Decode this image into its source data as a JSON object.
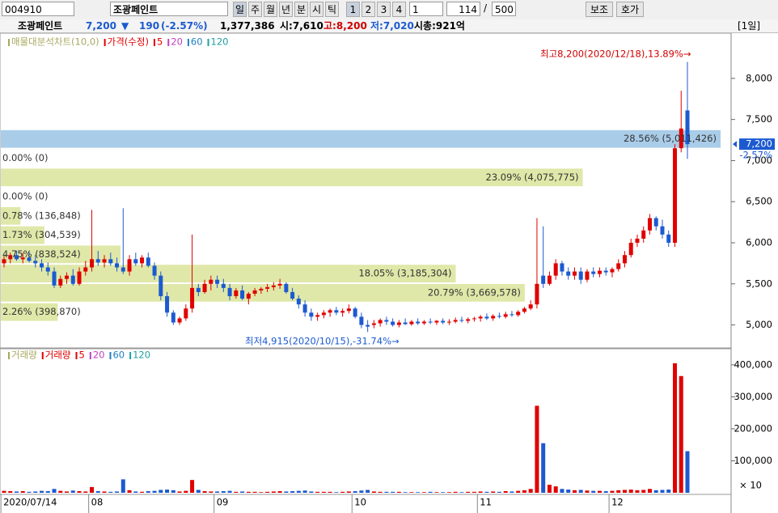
{
  "toolbar": {
    "code": "004910",
    "name": "조광페인트",
    "periods": [
      "일",
      "주",
      "월",
      "년",
      "분",
      "시",
      "틱"
    ],
    "numbers": [
      "1",
      "2",
      "3",
      "4"
    ],
    "interval": "1",
    "count": "114",
    "separator": "/",
    "total": "500",
    "buttons": [
      "보조",
      "호가"
    ]
  },
  "info": {
    "name": "조광페인트",
    "price": "7,200",
    "arrow": "▼",
    "change": "190",
    "change_pct": "(-2.57%)",
    "volume": "1,377,386",
    "open": "시:7,610",
    "high": "고:8,200",
    "low": "저:7,020",
    "cap": "시총:921억",
    "period": "[1일]"
  },
  "chart_data": {
    "type": "candlestick",
    "price_legend": [
      {
        "name": "매물대분석차트(10,0)",
        "color": "#a8a860"
      },
      {
        "name": "가격(수정)",
        "color": "#e00000"
      },
      {
        "name": "5",
        "color": "#e00000"
      },
      {
        "name": "20",
        "color": "#c040c0"
      },
      {
        "name": "60",
        "color": "#2080c0"
      },
      {
        "name": "120",
        "color": "#20a0a0"
      }
    ],
    "volume_legend": [
      {
        "name": "거래량",
        "color": "#a8a860"
      },
      {
        "name": "거래량",
        "color": "#e00000"
      },
      {
        "name": "5",
        "color": "#e00000"
      },
      {
        "name": "20",
        "color": "#c040c0"
      },
      {
        "name": "60",
        "color": "#2080c0"
      },
      {
        "name": "120",
        "color": "#20a0a0"
      }
    ],
    "categories": [
      "2020/07/14",
      null,
      null,
      null,
      null,
      null,
      null,
      null,
      null,
      null,
      null,
      null,
      null,
      null,
      "08",
      null,
      null,
      null,
      null,
      null,
      null,
      null,
      null,
      null,
      null,
      null,
      null,
      null,
      null,
      null,
      null,
      null,
      null,
      null,
      "09",
      null,
      null,
      null,
      null,
      null,
      null,
      null,
      null,
      null,
      null,
      null,
      null,
      null,
      null,
      null,
      null,
      null,
      null,
      null,
      null,
      null,
      "10",
      null,
      null,
      null,
      null,
      null,
      null,
      null,
      null,
      null,
      null,
      null,
      null,
      null,
      null,
      null,
      null,
      null,
      null,
      null,
      "11",
      null,
      null,
      null,
      null,
      null,
      null,
      null,
      null,
      null,
      null,
      null,
      null,
      null,
      null,
      null,
      null,
      null,
      null,
      null,
      null,
      "12",
      null,
      null,
      null,
      null,
      null,
      null,
      null,
      null,
      null,
      null,
      null,
      null
    ],
    "candles": [
      [
        5750,
        5850,
        5700,
        5800
      ],
      [
        5800,
        5880,
        5750,
        5850
      ],
      [
        5850,
        5900,
        5780,
        5800
      ],
      [
        5800,
        5880,
        5750,
        5820
      ],
      [
        5820,
        5900,
        5760,
        5780
      ],
      [
        5780,
        5850,
        5700,
        5750
      ],
      [
        5750,
        5800,
        5650,
        5700
      ],
      [
        5700,
        5760,
        5600,
        5650
      ],
      [
        5650,
        5700,
        5450,
        5480
      ],
      [
        5480,
        5600,
        5450,
        5560
      ],
      [
        5560,
        5640,
        5500,
        5600
      ],
      [
        5600,
        5680,
        5480,
        5500
      ],
      [
        5500,
        5700,
        5480,
        5650
      ],
      [
        5650,
        5780,
        5600,
        5700
      ],
      [
        5700,
        6400,
        5650,
        5800
      ],
      [
        5800,
        5900,
        5720,
        5760
      ],
      [
        5760,
        5850,
        5700,
        5800
      ],
      [
        5800,
        5880,
        5720,
        5750
      ],
      [
        5750,
        5820,
        5650,
        5700
      ],
      [
        5700,
        6420,
        5620,
        5650
      ],
      [
        5650,
        5850,
        5600,
        5800
      ],
      [
        5800,
        5880,
        5720,
        5750
      ],
      [
        5750,
        5850,
        5700,
        5820
      ],
      [
        5820,
        5880,
        5700,
        5720
      ],
      [
        5720,
        5760,
        5550,
        5600
      ],
      [
        5600,
        5650,
        5300,
        5350
      ],
      [
        5350,
        5400,
        5100,
        5150
      ],
      [
        5150,
        5180,
        5000,
        5030
      ],
      [
        5030,
        5100,
        5000,
        5080
      ],
      [
        5080,
        5250,
        5050,
        5200
      ],
      [
        5200,
        6100,
        5150,
        5450
      ],
      [
        5450,
        5500,
        5350,
        5400
      ],
      [
        5400,
        5550,
        5380,
        5500
      ],
      [
        5500,
        5600,
        5420,
        5550
      ],
      [
        5550,
        5600,
        5450,
        5500
      ],
      [
        5500,
        5560,
        5400,
        5450
      ],
      [
        5450,
        5500,
        5300,
        5350
      ],
      [
        5350,
        5450,
        5320,
        5420
      ],
      [
        5420,
        5480,
        5300,
        5320
      ],
      [
        5320,
        5400,
        5250,
        5380
      ],
      [
        5380,
        5450,
        5350,
        5420
      ],
      [
        5420,
        5460,
        5380,
        5440
      ],
      [
        5440,
        5500,
        5400,
        5460
      ],
      [
        5460,
        5520,
        5420,
        5480
      ],
      [
        5480,
        5560,
        5440,
        5500
      ],
      [
        5500,
        5520,
        5380,
        5400
      ],
      [
        5400,
        5450,
        5300,
        5320
      ],
      [
        5320,
        5360,
        5200,
        5250
      ],
      [
        5250,
        5300,
        5100,
        5150
      ],
      [
        5150,
        5200,
        5050,
        5100
      ],
      [
        5100,
        5150,
        5050,
        5120
      ],
      [
        5120,
        5180,
        5080,
        5150
      ],
      [
        5150,
        5200,
        5100,
        5180
      ],
      [
        5180,
        5220,
        5120,
        5150
      ],
      [
        5150,
        5200,
        5100,
        5170
      ],
      [
        5170,
        5250,
        5140,
        5200
      ],
      [
        5200,
        5220,
        5080,
        5100
      ],
      [
        5100,
        5150,
        4960,
        5000
      ],
      [
        5000,
        5060,
        4915,
        4980
      ],
      [
        5000,
        5060,
        4960,
        5020
      ],
      [
        5020,
        5080,
        4980,
        5060
      ],
      [
        5060,
        5100,
        5000,
        5040
      ],
      [
        5040,
        5080,
        4980,
        5000
      ],
      [
        5000,
        5060,
        4970,
        5030
      ],
      [
        5030,
        5080,
        5000,
        5010
      ],
      [
        5010,
        5060,
        4990,
        5040
      ],
      [
        5040,
        5080,
        5000,
        5020
      ],
      [
        5020,
        5060,
        5000,
        5040
      ],
      [
        5040,
        5080,
        5010,
        5030
      ],
      [
        5030,
        5060,
        5000,
        5050
      ],
      [
        5050,
        5080,
        5010,
        5030
      ],
      [
        5030,
        5070,
        5000,
        5040
      ],
      [
        5040,
        5090,
        5020,
        5060
      ],
      [
        5060,
        5100,
        5030,
        5050
      ],
      [
        5050,
        5090,
        5020,
        5070
      ],
      [
        5070,
        5100,
        5040,
        5080
      ],
      [
        5080,
        5120,
        5040,
        5100
      ],
      [
        5100,
        5140,
        5060,
        5080
      ],
      [
        5080,
        5130,
        5050,
        5110
      ],
      [
        5110,
        5150,
        5080,
        5100
      ],
      [
        5100,
        5160,
        5080,
        5130
      ],
      [
        5130,
        5170,
        5100,
        5120
      ],
      [
        5120,
        5180,
        5100,
        5160
      ],
      [
        5160,
        5220,
        5140,
        5200
      ],
      [
        5200,
        5300,
        5180,
        5250
      ],
      [
        5250,
        6300,
        5200,
        5500
      ],
      [
        5600,
        6200,
        5450,
        5500
      ],
      [
        5500,
        5650,
        5480,
        5600
      ],
      [
        5600,
        5800,
        5550,
        5750
      ],
      [
        5750,
        5780,
        5600,
        5650
      ],
      [
        5650,
        5700,
        5550,
        5600
      ],
      [
        5600,
        5700,
        5550,
        5650
      ],
      [
        5650,
        5700,
        5500,
        5550
      ],
      [
        5550,
        5680,
        5520,
        5650
      ],
      [
        5650,
        5700,
        5580,
        5620
      ],
      [
        5620,
        5700,
        5580,
        5660
      ],
      [
        5660,
        5700,
        5600,
        5640
      ],
      [
        5640,
        5700,
        5580,
        5680
      ],
      [
        5680,
        5800,
        5650,
        5750
      ],
      [
        5750,
        5900,
        5700,
        5850
      ],
      [
        5850,
        6050,
        5820,
        6000
      ],
      [
        6000,
        6100,
        5950,
        6050
      ],
      [
        6050,
        6200,
        6000,
        6150
      ],
      [
        6150,
        6350,
        6100,
        6300
      ],
      [
        6300,
        6320,
        6150,
        6200
      ],
      [
        6200,
        6280,
        6050,
        6100
      ],
      [
        6100,
        6150,
        5950,
        6000
      ],
      [
        6000,
        7200,
        5950,
        7150
      ],
      [
        7150,
        7850,
        7100,
        7390
      ],
      [
        7610,
        8200,
        7020,
        7200
      ]
    ],
    "volume": [
      6000,
      5000,
      4000,
      5000,
      3000,
      4000,
      6000,
      5000,
      12000,
      6000,
      4000,
      7000,
      5000,
      4000,
      18000,
      5000,
      4000,
      3000,
      4000,
      42000,
      8000,
      4000,
      3000,
      5000,
      6000,
      9000,
      10000,
      8000,
      4000,
      6000,
      40000,
      9000,
      5000,
      4000,
      4000,
      5000,
      6000,
      3000,
      4000,
      3000,
      3000,
      2000,
      3000,
      4000,
      5000,
      4000,
      5000,
      6000,
      7000,
      4000,
      3000,
      3000,
      3000,
      2000,
      3000,
      4000,
      5000,
      7000,
      9000,
      4000,
      3000,
      3000,
      3000,
      3000,
      2000,
      2000,
      2000,
      2000,
      3000,
      2000,
      2000,
      2000,
      3000,
      2000,
      3000,
      3000,
      4000,
      3000,
      4000,
      3000,
      5000,
      4000,
      6000,
      8000,
      12000,
      272000,
      155000,
      25000,
      20000,
      12000,
      10000,
      8000,
      9000,
      7000,
      6000,
      6000,
      5000,
      6000,
      8000,
      9000,
      10000,
      8000,
      9000,
      12000,
      8000,
      9000,
      10000,
      405000,
      365000,
      130000
    ],
    "up_color": "#e00000",
    "down_color": "#1c5ad0",
    "ylim": [
      4740,
      8550
    ],
    "yticks": [
      {
        "value": 5000,
        "label": "5,000"
      },
      {
        "value": 5500,
        "label": "5,500"
      },
      {
        "value": 6000,
        "label": "6,000"
      },
      {
        "value": 6500,
        "label": "6,500"
      },
      {
        "value": 7000,
        "label": "7,000"
      },
      {
        "value": 7500,
        "label": "7,500"
      },
      {
        "value": 8000,
        "label": "8,000"
      }
    ],
    "volume_ylim": [
      0,
      420000
    ],
    "volume_yticks": [
      {
        "value": 100000,
        "label": "100,000"
      },
      {
        "value": 200000,
        "label": "200,000"
      },
      {
        "value": 300000,
        "label": "300,000"
      },
      {
        "value": 400000,
        "label": "400,000"
      }
    ],
    "volume_unit": "× 10",
    "current": {
      "value": 7200,
      "label": "7,200",
      "change": "-2.57%"
    },
    "profile": [
      {
        "low": 7146,
        "high": 7380,
        "pct": 28.56,
        "label": "28.56% (5,011,426)",
        "color": "#a9cce8"
      },
      {
        "low": 6912,
        "high": 7146,
        "pct": 0,
        "label": "0.00% (0)",
        "color": "#dfe8a8"
      },
      {
        "low": 6678,
        "high": 6912,
        "pct": 23.09,
        "label": "23.09% (4,075,775)",
        "color": "#dfe8a8"
      },
      {
        "low": 6444,
        "high": 6678,
        "pct": 0,
        "label": "0.00% (0)",
        "color": "#dfe8a8"
      },
      {
        "low": 6210,
        "high": 6444,
        "pct": 0.78,
        "label": "0.78% (136,848)",
        "color": "#dfe8a8"
      },
      {
        "low": 5976,
        "high": 6210,
        "pct": 1.73,
        "label": "1.73% (304,539)",
        "color": "#dfe8a8"
      },
      {
        "low": 5742,
        "high": 5976,
        "pct": 4.75,
        "label": "4.75% (838,524)",
        "color": "#dfe8a8"
      },
      {
        "low": 5508,
        "high": 5742,
        "pct": 18.05,
        "label": "18.05% (3,185,304)",
        "color": "#dfe8a8"
      },
      {
        "low": 5274,
        "high": 5508,
        "pct": 20.79,
        "label": "20.79% (3,669,578)",
        "color": "#dfe8a8"
      },
      {
        "low": 5040,
        "high": 5274,
        "pct": 2.26,
        "label": "2.26% (398,870)",
        "color": "#dfe8a8"
      }
    ],
    "annotations": [
      {
        "text": "최고8,200(2020/12/18),13.89%→",
        "color": "#d00000"
      },
      {
        "text": "최저4,915(2020/10/15),-31.74%→",
        "color": "#1c5ad0"
      }
    ]
  }
}
